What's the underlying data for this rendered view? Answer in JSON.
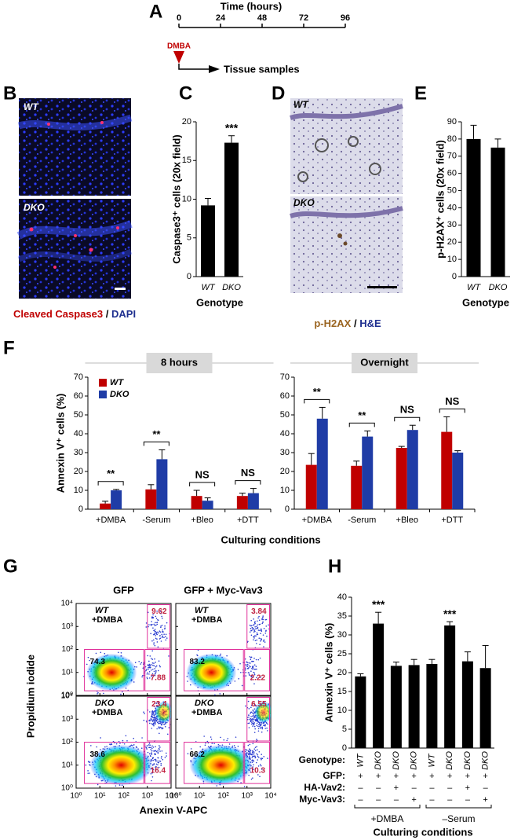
{
  "panels": {
    "letters": [
      "A",
      "B",
      "C",
      "D",
      "E",
      "F",
      "G",
      "H"
    ]
  },
  "timeline": {
    "title": "Time (hours)",
    "xlim": [
      0,
      96
    ],
    "ticks": [
      0,
      24,
      48,
      72,
      96
    ],
    "marker": "DMBA",
    "arrow_label": "Tissue samples"
  },
  "micrographs_b": {
    "top_label": "WT",
    "bottom_label": "DKO",
    "caption_stain": "Cleaved Caspase3",
    "caption_sep": "/",
    "caption_counter": "DAPI"
  },
  "micrographs_d": {
    "top_label": "WT",
    "bottom_label": "DKO",
    "caption_stain": "p-H2AX",
    "caption_sep": "/",
    "caption_counter": "H&E"
  },
  "panel_f": {
    "xlabel": "Culturing conditions"
  },
  "chart_data": [
    {
      "type": "bar",
      "ylabel": "Caspase3⁺ cells (20x field)",
      "xlabel": "Genotype",
      "categories": [
        "WT",
        "DKO"
      ],
      "values": [
        9.2,
        17.3
      ],
      "errors": [
        0.9,
        0.9
      ],
      "color": "#000000",
      "annotations": [
        null,
        "***"
      ],
      "ylim": [
        0,
        20
      ],
      "yticks": [
        0,
        5,
        10,
        15,
        20
      ]
    },
    {
      "type": "bar",
      "ylabel": "p-H2AX⁺ cells (20x field)",
      "xlabel": "Genotype",
      "categories": [
        "WT",
        "DKO"
      ],
      "values": [
        80,
        75
      ],
      "errors": [
        8,
        5
      ],
      "color": "#000000",
      "ylim": [
        0,
        90
      ],
      "yticks": [
        0,
        10,
        20,
        30,
        40,
        50,
        60,
        70,
        80,
        90
      ]
    },
    {
      "type": "bar",
      "title": "8 hours",
      "ylabel": "Annexin V⁺ cells (%)",
      "categories": [
        "+DMBA",
        "-Serum",
        "+Bleo",
        "+DTT"
      ],
      "series": [
        {
          "name": "WT",
          "color": "#c00000",
          "values": [
            3,
            10.5,
            7,
            7
          ],
          "errors": [
            1.2,
            2.5,
            3,
            1.5
          ]
        },
        {
          "name": "DKO",
          "color": "#1f3ca6",
          "values": [
            10,
            26.5,
            4.5,
            8.5
          ],
          "errors": [
            0.5,
            5,
            1.5,
            2.5
          ]
        }
      ],
      "annotations": [
        "**",
        "**",
        "NS",
        "NS"
      ],
      "ylim": [
        0,
        70
      ],
      "yticks": [
        0,
        10,
        20,
        30,
        40,
        50,
        60,
        70
      ]
    },
    {
      "type": "bar",
      "title": "Overnight",
      "categories": [
        "+DMBA",
        "-Serum",
        "+Bleo",
        "+DTT"
      ],
      "series": [
        {
          "color": "#c00000",
          "values": [
            23.5,
            23,
            32.5,
            41
          ],
          "errors": [
            6,
            2.5,
            0.8,
            8
          ]
        },
        {
          "color": "#1f3ca6",
          "values": [
            48,
            38.5,
            42,
            30
          ],
          "errors": [
            6,
            3,
            2.5,
            1
          ]
        }
      ],
      "annotations": [
        "**",
        "**",
        "NS",
        "NS"
      ],
      "ylim": [
        0,
        70
      ],
      "yticks": [
        0,
        10,
        20,
        30,
        40,
        50,
        60,
        70
      ]
    },
    {
      "type": "flow",
      "titles": [
        "GFP",
        "GFP + Myc-Vav3"
      ],
      "ylabel": "Propidium iodide",
      "xlabel": "Anexin V-APC",
      "xscale": "log",
      "yscale": "log",
      "xlim": [
        1,
        10000
      ],
      "ylim": [
        1,
        10000
      ],
      "xticks": [
        {
          "value": 1,
          "label": "10⁰"
        },
        {
          "value": 10,
          "label": "10¹"
        },
        {
          "value": 100,
          "label": "10²"
        },
        {
          "value": 1000,
          "label": "10³"
        },
        {
          "value": 10000,
          "label": "10⁴"
        }
      ],
      "yticks": [
        {
          "value": 1,
          "label": "10⁰"
        },
        {
          "value": 10,
          "label": "10¹"
        },
        {
          "value": 100,
          "label": "10²"
        },
        {
          "value": 1000,
          "label": "10³"
        },
        {
          "value": 10000,
          "label": "10⁴"
        }
      ],
      "plots": [
        {
          "genotype": "WT",
          "treatment": "+DMBA",
          "gates": {
            "upper_right": 9.62,
            "left": 74.3,
            "lower_right": 7.88
          }
        },
        {
          "genotype": "WT",
          "treatment": "+DMBA",
          "gates": {
            "upper_right": 3.84,
            "left": 83.2,
            "lower_right": 2.22
          }
        },
        {
          "genotype": "DKO",
          "treatment": "+DMBA",
          "gates": {
            "upper_right": 23.4,
            "left": 38.6,
            "lower_right": 16.4
          }
        },
        {
          "genotype": "DKO",
          "treatment": "+DMBA",
          "gates": {
            "upper_right": 6.55,
            "left": 66.2,
            "lower_right": 10.3
          }
        }
      ]
    },
    {
      "type": "bar",
      "ylabel": "Annexin V⁺ cells (%)",
      "xlabel": "Culturing conditions",
      "values": [
        19,
        33,
        21.8,
        22,
        22.3,
        32.5,
        23,
        21.2
      ],
      "errors": [
        0.7,
        3,
        1,
        1.5,
        1.2,
        1,
        2.5,
        6
      ],
      "color": "#000000",
      "annotations": [
        null,
        "***",
        null,
        null,
        null,
        "***",
        null,
        null
      ],
      "ylim": [
        0,
        40
      ],
      "yticks": [
        0,
        5,
        10,
        15,
        20,
        25,
        30,
        35,
        40
      ],
      "table": [
        {
          "label": "Genotype:",
          "cells": [
            "WT",
            "DKO",
            "DKO",
            "DKO",
            "WT",
            "DKO",
            "DKO",
            "DKO"
          ]
        },
        {
          "label": "GFP:",
          "cells": [
            "+",
            "+",
            "+",
            "+",
            "+",
            "+",
            "+",
            "+"
          ]
        },
        {
          "label": "HA-Vav2:",
          "cells": [
            "–",
            "–",
            "+",
            "–",
            "–",
            "–",
            "+",
            "–"
          ]
        },
        {
          "label": "Myc-Vav3:",
          "cells": [
            "–",
            "–",
            "–",
            "+",
            "–",
            "–",
            "–",
            "+"
          ]
        }
      ],
      "groups": [
        "+DMBA",
        "–Serum"
      ]
    }
  ]
}
